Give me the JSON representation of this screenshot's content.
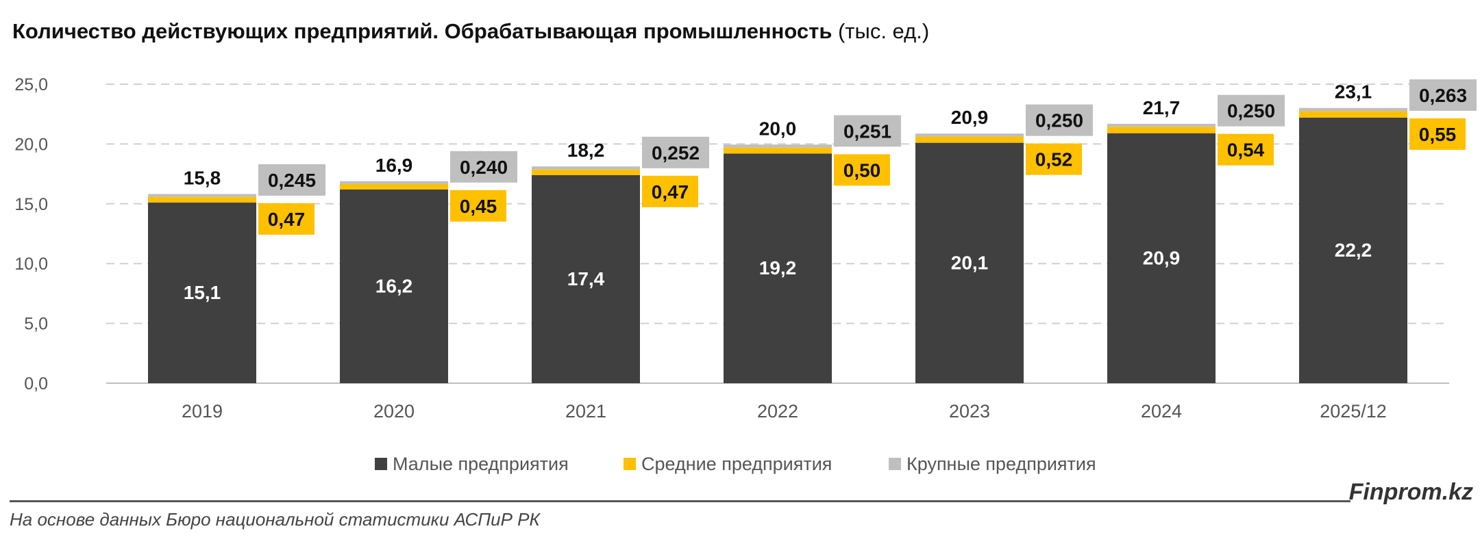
{
  "title_bold": "Количество действующих предприятий. Обрабатывающая промышленность",
  "title_unit": "(тыс. ед.)",
  "source": "На основе данных Бюро национальной статистики АСПиР РК",
  "brand": "Finprom.kz",
  "colors": {
    "small": "#404040",
    "medium": "#FFC000",
    "large": "#BFBFBF",
    "grid": "#D0D0D0"
  },
  "chart_data": {
    "type": "bar",
    "stacked": true,
    "categories": [
      "2019",
      "2020",
      "2021",
      "2022",
      "2023",
      "2024",
      "2025/12"
    ],
    "series": [
      {
        "name": "Малые предприятия",
        "values": [
          15.1,
          16.2,
          17.4,
          19.2,
          20.1,
          20.9,
          22.2
        ],
        "labels": [
          "15,1",
          "16,2",
          "17,4",
          "19,2",
          "20,1",
          "20,9",
          "22,2"
        ]
      },
      {
        "name": "Средние предприятия",
        "values": [
          0.47,
          0.45,
          0.47,
          0.5,
          0.52,
          0.54,
          0.55
        ],
        "labels": [
          "0,47",
          "0,45",
          "0,47",
          "0,50",
          "0,52",
          "0,54",
          "0,55"
        ]
      },
      {
        "name": "Крупные предприятия",
        "values": [
          0.245,
          0.24,
          0.252,
          0.251,
          0.25,
          0.25,
          0.263
        ],
        "labels": [
          "0,245",
          "0,240",
          "0,252",
          "0,251",
          "0,250",
          "0,250",
          "0,263"
        ]
      }
    ],
    "totals": [
      "15,8",
      "16,9",
      "18,2",
      "20,0",
      "20,9",
      "21,7",
      "23,1"
    ],
    "ylim": [
      0,
      25
    ],
    "yticks": [
      0,
      5,
      10,
      15,
      20,
      25
    ],
    "ytick_labels": [
      "0,0",
      "5,0",
      "10,0",
      "15,0",
      "20,0",
      "25,0"
    ],
    "grid": true,
    "legend": "bottom"
  }
}
